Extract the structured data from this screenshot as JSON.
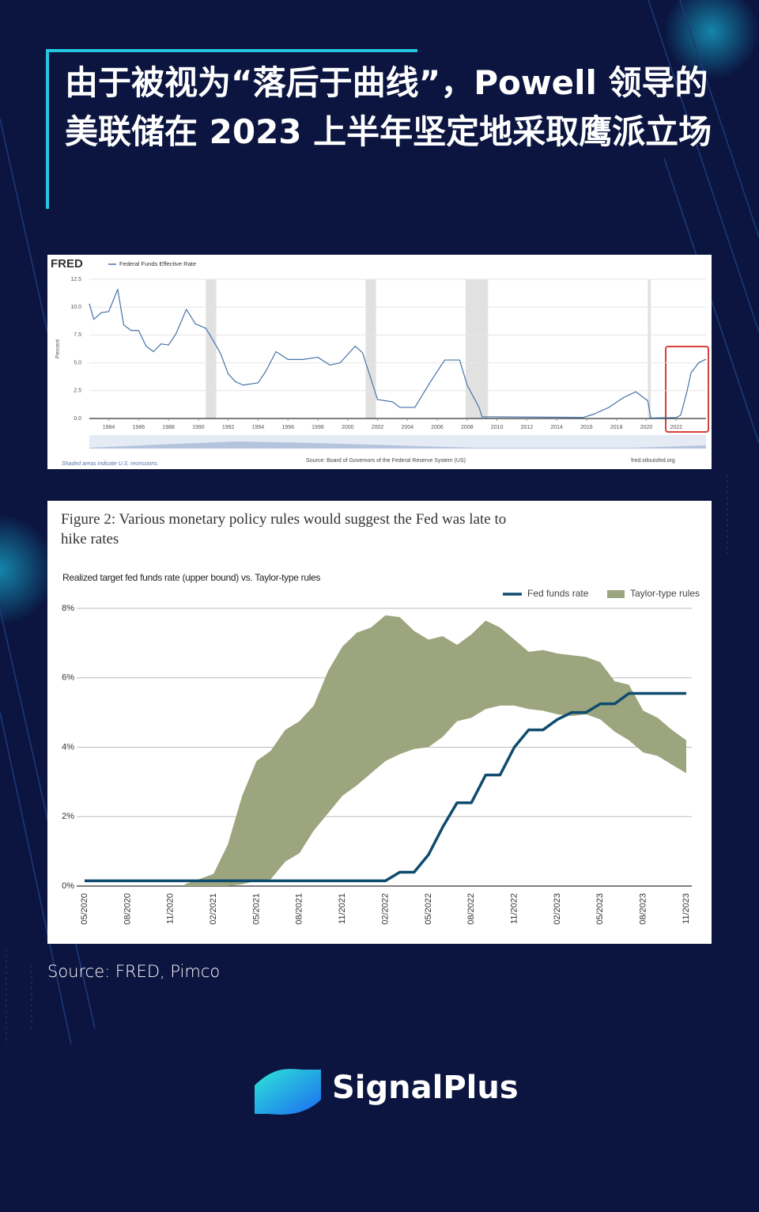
{
  "title": "由于被视为“落后于曲线”，Powell 领导的美联储在 2023 上半年坚定地采取鹰派立场",
  "chart_data": [
    {
      "type": "line",
      "logo": "FRED",
      "y_label": "Percent",
      "footnote": "Shaded areas indicate U.S. recessions.",
      "source": "Source: Board of Governors of the Federal Reserve System (US)",
      "site": "fred.stlouisfed.org",
      "x": [
        1982.7,
        1983.0,
        1983.5,
        1984.0,
        1984.6,
        1985.0,
        1985.5,
        1986.0,
        1986.5,
        1987.0,
        1987.5,
        1988.0,
        1988.5,
        1989.2,
        1989.8,
        1990.5,
        1991.0,
        1991.5,
        1992.0,
        1992.5,
        1993.0,
        1994.0,
        1994.5,
        1995.2,
        1996.0,
        1997.0,
        1998.0,
        1998.8,
        1999.5,
        2000.5,
        2001.0,
        2001.5,
        2002.0,
        2003.0,
        2003.5,
        2004.5,
        2005.5,
        2006.5,
        2007.5,
        2008.0,
        2008.8,
        2009.0,
        2015.8,
        2016.5,
        2017.5,
        2018.5,
        2019.3,
        2019.7,
        2020.1,
        2020.3,
        2022.0,
        2022.3,
        2022.7,
        2023.0,
        2023.5,
        2024.0
      ],
      "series": [
        {
          "name": "Federal Funds Effective Rate",
          "color": "#4572a7",
          "values": [
            10.3,
            8.9,
            9.5,
            9.6,
            11.6,
            8.4,
            7.9,
            7.9,
            6.5,
            6.0,
            6.7,
            6.6,
            7.6,
            9.8,
            8.5,
            8.1,
            7.0,
            5.8,
            4.0,
            3.3,
            3.0,
            3.2,
            4.2,
            6.0,
            5.3,
            5.3,
            5.5,
            4.8,
            5.0,
            6.5,
            5.9,
            3.8,
            1.7,
            1.5,
            1.0,
            1.0,
            3.2,
            5.25,
            5.25,
            3.0,
            1.0,
            0.15,
            0.1,
            0.4,
            1.0,
            1.9,
            2.4,
            2.0,
            1.6,
            0.05,
            0.08,
            0.3,
            2.3,
            4.1,
            5.0,
            5.33
          ]
        }
      ],
      "recessions": [
        [
          1990.5,
          1991.2
        ],
        [
          2001.2,
          2001.9
        ],
        [
          2007.9,
          2009.4
        ],
        [
          2020.1,
          2020.3
        ]
      ],
      "xlim": [
        1982.7,
        2024.0
      ],
      "xticks": [
        1984,
        1986,
        1988,
        1990,
        1992,
        1994,
        1996,
        1998,
        2000,
        2002,
        2004,
        2006,
        2008,
        2010,
        2012,
        2014,
        2016,
        2018,
        2020,
        2022
      ],
      "ylim": [
        0,
        12.5
      ],
      "yticks": [
        {
          "value": 0,
          "label": "0.0"
        },
        2.5,
        {
          "value": 5,
          "label": "5.0"
        },
        7.5,
        {
          "value": 10,
          "label": "10.0"
        },
        12.5
      ],
      "grid": true
    },
    {
      "type": "line",
      "title": "Figure 2: Various monetary policy rules would suggest the Fed was late to hike rates",
      "subtitle": "Realized target fed funds rate (upper bound) vs. Taylor-type rules",
      "categories": [
        "05/2020",
        null,
        null,
        "08/2020",
        null,
        null,
        "11/2020",
        null,
        null,
        "02/2021",
        null,
        null,
        "05/2021",
        null,
        null,
        "08/2021",
        null,
        null,
        "11/2021",
        null,
        null,
        "02/2022",
        null,
        null,
        "05/2022",
        null,
        null,
        "08/2022",
        null,
        null,
        "11/2022",
        null,
        null,
        "02/2023",
        null,
        null,
        "05/2023",
        null,
        null,
        "08/2023",
        null,
        null,
        "11/2023"
      ],
      "series": [
        {
          "name": "Fed funds rate",
          "color": "#0f4b6e",
          "values": [
            0.15,
            0.15,
            0.15,
            0.15,
            0.15,
            0.15,
            0.15,
            0.15,
            0.15,
            0.15,
            0.15,
            0.15,
            0.15,
            0.15,
            0.15,
            0.15,
            0.15,
            0.15,
            0.15,
            0.15,
            0.15,
            0.15,
            0.4,
            0.4,
            0.9,
            1.7,
            2.4,
            2.4,
            3.2,
            3.2,
            4.0,
            4.5,
            4.5,
            4.8,
            5.0,
            5.0,
            5.25,
            5.25,
            5.55,
            5.55,
            5.55,
            5.55,
            5.55
          ]
        },
        {
          "name": "Taylor-type rules",
          "color": "#9ca57e",
          "low": [
            null,
            null,
            null,
            null,
            null,
            null,
            null,
            0,
            0,
            0,
            0,
            0.05,
            0.15,
            0.2,
            0.7,
            0.95,
            1.6,
            2.1,
            2.6,
            2.9,
            3.25,
            3.6,
            3.8,
            3.95,
            4.0,
            4.3,
            4.75,
            4.85,
            5.1,
            5.2,
            5.2,
            5.1,
            5.05,
            4.95,
            4.9,
            4.95,
            4.8,
            4.45,
            4.2,
            3.85,
            3.75,
            3.5,
            3.25
          ],
          "high": [
            null,
            null,
            null,
            null,
            null,
            null,
            null,
            0.05,
            0.2,
            0.35,
            1.2,
            2.6,
            3.6,
            3.9,
            4.5,
            4.75,
            5.2,
            6.2,
            6.9,
            7.3,
            7.45,
            7.8,
            7.75,
            7.35,
            7.1,
            7.2,
            6.95,
            7.25,
            7.65,
            7.45,
            7.1,
            6.75,
            6.8,
            6.7,
            6.65,
            6.6,
            6.45,
            5.9,
            5.8,
            5.05,
            4.85,
            4.5,
            4.2
          ]
        }
      ],
      "ylim": [
        0,
        8
      ],
      "yticks": [
        {
          "value": 0,
          "label": "0%"
        },
        {
          "value": 2,
          "label": "2%"
        },
        {
          "value": 4,
          "label": "4%"
        },
        {
          "value": 6,
          "label": "6%"
        },
        {
          "value": 8,
          "label": "8%"
        }
      ],
      "grid": true
    }
  ],
  "source": "Source: FRED, Pimco",
  "brand": "SignalPlus"
}
